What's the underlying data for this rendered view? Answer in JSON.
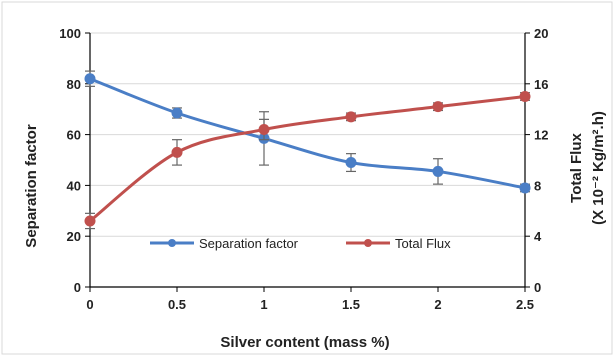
{
  "chart_data": {
    "type": "line",
    "x": [
      0,
      0.5,
      1,
      1.5,
      2,
      2.5
    ],
    "xlabel": "Silver content  (mass %)",
    "ylabel": "Separation factor",
    "y2label_line1": "Total Flux",
    "y2label_line2": "(X  10⁻² Kg/m².h)",
    "xlim": [
      0,
      2.5
    ],
    "ylim": [
      0,
      100
    ],
    "y2lim": [
      0,
      20
    ],
    "xticks": [
      "0",
      "0.5",
      "1",
      "1.5",
      "2",
      "2.5"
    ],
    "yticks": [
      "0",
      "20",
      "40",
      "60",
      "80",
      "100"
    ],
    "y2ticks": [
      "0",
      "4",
      "8",
      "12",
      "16",
      "20"
    ],
    "grid": "horizontal",
    "legend_position": "bottom-center",
    "series": [
      {
        "name": "Separation factor",
        "axis": "left",
        "color": "#4a7ec6",
        "values": [
          82,
          68.5,
          58.5,
          49,
          45.5,
          39
        ],
        "errors": [
          3,
          2,
          10.5,
          3.5,
          5,
          1.5
        ]
      },
      {
        "name": "Total Flux",
        "axis": "right",
        "color": "#c0504d",
        "values": [
          5.2,
          10.6,
          12.4,
          13.4,
          14.2,
          15.0
        ],
        "errors": [
          0.6,
          1.0,
          0.8,
          0.3,
          0.3,
          0.3
        ]
      }
    ]
  }
}
